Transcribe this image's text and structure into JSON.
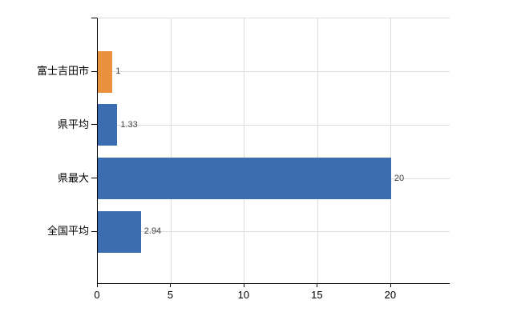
{
  "chart_data": {
    "type": "bar",
    "orientation": "horizontal",
    "title": "",
    "xlabel": "",
    "ylabel": "",
    "categories": [
      "富士吉田市",
      "県平均",
      "県最大",
      "全国平均"
    ],
    "values": [
      1,
      1.33,
      20,
      2.94
    ],
    "value_labels": [
      "1",
      "1.33",
      "20",
      "2.94"
    ],
    "bar_colors": [
      "#e9913c",
      "#3c6db1",
      "#3c6db1",
      "#3c6db1"
    ],
    "xlim": [
      0,
      24
    ],
    "x_ticks": [
      0,
      5,
      10,
      15,
      20
    ],
    "x_tick_labels": [
      "0",
      "5",
      "10",
      "15",
      "20"
    ],
    "grid": true,
    "legend": false,
    "colors": {
      "background": "#ffffff",
      "axis": "#000000",
      "gridline": "#dddddd",
      "bar_blue": "#3c6db1",
      "bar_orange": "#e9913c",
      "value_label_text": "#404040",
      "tick_label_text": "#000000"
    }
  }
}
